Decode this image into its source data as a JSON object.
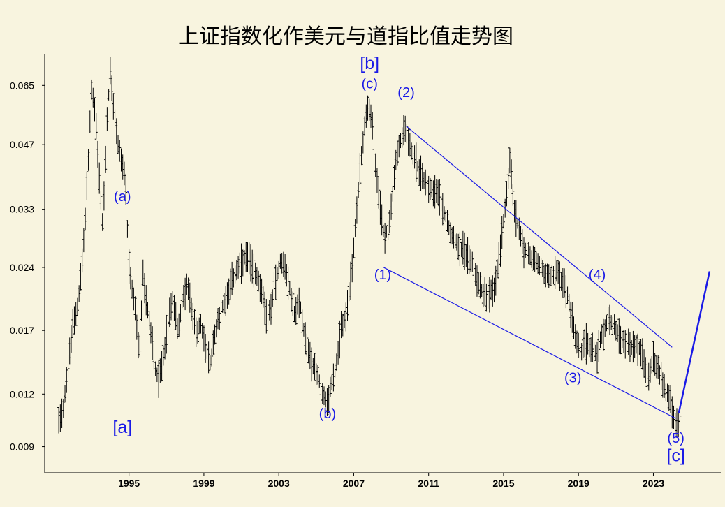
{
  "chart_data": {
    "type": "ohlc",
    "title": "上证指数化作美元与道指比值走势图",
    "xlabel": "",
    "ylabel": "",
    "scale": "log",
    "x_ticks": [
      "1995",
      "1999",
      "2003",
      "2007",
      "2011",
      "2015",
      "2019",
      "2023"
    ],
    "y_ticks": [
      "0.009",
      "0.012",
      "0.017",
      "0.024",
      "0.033",
      "0.047",
      "0.065"
    ],
    "xlim": [
      1990.5,
      2026.6
    ],
    "ylim": [
      0.0078,
      0.077
    ],
    "grid": false,
    "legend": "none",
    "colors": {
      "background": "#f8f4df",
      "bars": "#000000",
      "annotation": "#1a1ae6"
    },
    "series": [
      {
        "points": [
          [
            1991.25,
            0.0105
          ],
          [
            1991.5,
            0.0112
          ],
          [
            1991.75,
            0.014
          ],
          [
            1992.0,
            0.0175
          ],
          [
            1992.3,
            0.02
          ],
          [
            1992.6,
            0.028
          ],
          [
            1992.85,
            0.045
          ],
          [
            1993.0,
            0.064
          ],
          [
            1993.2,
            0.056
          ],
          [
            1993.4,
            0.04
          ],
          [
            1993.6,
            0.03
          ],
          [
            1993.85,
            0.056
          ],
          [
            1994.0,
            0.07
          ],
          [
            1994.2,
            0.056
          ],
          [
            1994.4,
            0.048
          ],
          [
            1994.6,
            0.043
          ],
          [
            1994.8,
            0.039
          ],
          [
            1995.0,
            0.024
          ],
          [
            1995.15,
            0.0215
          ],
          [
            1995.35,
            0.019
          ],
          [
            1995.55,
            0.0145
          ],
          [
            1995.75,
            0.023
          ],
          [
            1996.0,
            0.019
          ],
          [
            1996.2,
            0.0165
          ],
          [
            1996.4,
            0.014
          ],
          [
            1996.6,
            0.013
          ],
          [
            1996.85,
            0.015
          ],
          [
            1997.1,
            0.018
          ],
          [
            1997.35,
            0.0205
          ],
          [
            1997.6,
            0.017
          ],
          [
            1997.85,
            0.02
          ],
          [
            1998.1,
            0.022
          ],
          [
            1998.35,
            0.019
          ],
          [
            1998.6,
            0.017
          ],
          [
            1998.85,
            0.0175
          ],
          [
            1999.1,
            0.0155
          ],
          [
            1999.35,
            0.014
          ],
          [
            1999.6,
            0.017
          ],
          [
            1999.85,
            0.0185
          ],
          [
            2000.1,
            0.02
          ],
          [
            2000.35,
            0.0215
          ],
          [
            2000.6,
            0.023
          ],
          [
            2000.85,
            0.024
          ],
          [
            2001.1,
            0.025
          ],
          [
            2001.35,
            0.0255
          ],
          [
            2001.6,
            0.024
          ],
          [
            2001.85,
            0.023
          ],
          [
            2002.1,
            0.021
          ],
          [
            2002.35,
            0.018
          ],
          [
            2002.6,
            0.0195
          ],
          [
            2002.85,
            0.0225
          ],
          [
            2003.1,
            0.025
          ],
          [
            2003.35,
            0.024
          ],
          [
            2003.6,
            0.021
          ],
          [
            2003.85,
            0.0185
          ],
          [
            2004.1,
            0.02
          ],
          [
            2004.35,
            0.017
          ],
          [
            2004.6,
            0.015
          ],
          [
            2004.85,
            0.014
          ],
          [
            2005.1,
            0.0132
          ],
          [
            2005.35,
            0.012
          ],
          [
            2005.6,
            0.0115
          ],
          [
            2005.85,
            0.013
          ],
          [
            2006.1,
            0.0142
          ],
          [
            2006.35,
            0.0175
          ],
          [
            2006.6,
            0.0185
          ],
          [
            2006.85,
            0.0225
          ],
          [
            2007.1,
            0.03
          ],
          [
            2007.35,
            0.042
          ],
          [
            2007.6,
            0.053
          ],
          [
            2007.8,
            0.059
          ],
          [
            2008.0,
            0.052
          ],
          [
            2008.2,
            0.04
          ],
          [
            2008.4,
            0.034
          ],
          [
            2008.6,
            0.029
          ],
          [
            2008.8,
            0.029
          ],
          [
            2009.0,
            0.033
          ],
          [
            2009.25,
            0.043
          ],
          [
            2009.5,
            0.048
          ],
          [
            2009.75,
            0.052
          ],
          [
            2010.0,
            0.047
          ],
          [
            2010.3,
            0.043
          ],
          [
            2010.6,
            0.04
          ],
          [
            2010.9,
            0.038
          ],
          [
            2011.2,
            0.037
          ],
          [
            2011.5,
            0.036
          ],
          [
            2011.8,
            0.033
          ],
          [
            2012.1,
            0.03
          ],
          [
            2012.4,
            0.028
          ],
          [
            2012.7,
            0.027
          ],
          [
            2013.0,
            0.026
          ],
          [
            2013.3,
            0.025
          ],
          [
            2013.6,
            0.0225
          ],
          [
            2013.9,
            0.021
          ],
          [
            2014.2,
            0.0205
          ],
          [
            2014.5,
            0.0215
          ],
          [
            2014.8,
            0.026
          ],
          [
            2015.1,
            0.034
          ],
          [
            2015.35,
            0.044
          ],
          [
            2015.55,
            0.033
          ],
          [
            2015.8,
            0.03
          ],
          [
            2016.1,
            0.0265
          ],
          [
            2016.4,
            0.0255
          ],
          [
            2016.7,
            0.025
          ],
          [
            2017.0,
            0.024
          ],
          [
            2017.3,
            0.023
          ],
          [
            2017.6,
            0.023
          ],
          [
            2017.9,
            0.0235
          ],
          [
            2018.2,
            0.022
          ],
          [
            2018.5,
            0.02
          ],
          [
            2018.8,
            0.0165
          ],
          [
            2019.1,
            0.015
          ],
          [
            2019.4,
            0.016
          ],
          [
            2019.7,
            0.0155
          ],
          [
            2020.0,
            0.015
          ],
          [
            2020.3,
            0.017
          ],
          [
            2020.6,
            0.018
          ],
          [
            2020.9,
            0.0175
          ],
          [
            2021.2,
            0.0165
          ],
          [
            2021.5,
            0.016
          ],
          [
            2021.8,
            0.0155
          ],
          [
            2022.1,
            0.0158
          ],
          [
            2022.4,
            0.015
          ],
          [
            2022.7,
            0.013
          ],
          [
            2023.0,
            0.0145
          ],
          [
            2023.3,
            0.0135
          ],
          [
            2023.6,
            0.0125
          ],
          [
            2023.9,
            0.0115
          ],
          [
            2024.2,
            0.01
          ],
          [
            2024.45,
            0.0105
          ]
        ]
      }
    ],
    "annotations": [
      {
        "label": "[a]",
        "x": 1994.65,
        "y": 0.0097
      },
      {
        "label": "(a)",
        "x": 1994.65,
        "y": 0.0345
      },
      {
        "label": "(b)",
        "x": 2005.6,
        "y": 0.0105
      },
      {
        "label": "[b]",
        "x": 2007.85,
        "y": 0.071
      },
      {
        "label": "(c)",
        "x": 2007.85,
        "y": 0.064
      },
      {
        "label": "(2)",
        "x": 2009.8,
        "y": 0.061
      },
      {
        "label": "(1)",
        "x": 2008.55,
        "y": 0.0225
      },
      {
        "label": "(3)",
        "x": 2018.7,
        "y": 0.0128
      },
      {
        "label": "(4)",
        "x": 2020.0,
        "y": 0.0225
      },
      {
        "label": "(5)",
        "x": 2024.2,
        "y": 0.0092
      },
      {
        "label": "[c]",
        "x": 2024.2,
        "y": 0.0083
      }
    ],
    "trendlines": [
      {
        "from": [
          2008.6,
          0.024
        ],
        "to": [
          2024.2,
          0.0105
        ]
      },
      {
        "from": [
          2009.8,
          0.052
        ],
        "to": [
          2024.0,
          0.0155
        ]
      },
      {
        "from": [
          2024.35,
          0.0108
        ],
        "to": [
          2026.0,
          0.0235
        ]
      }
    ]
  }
}
